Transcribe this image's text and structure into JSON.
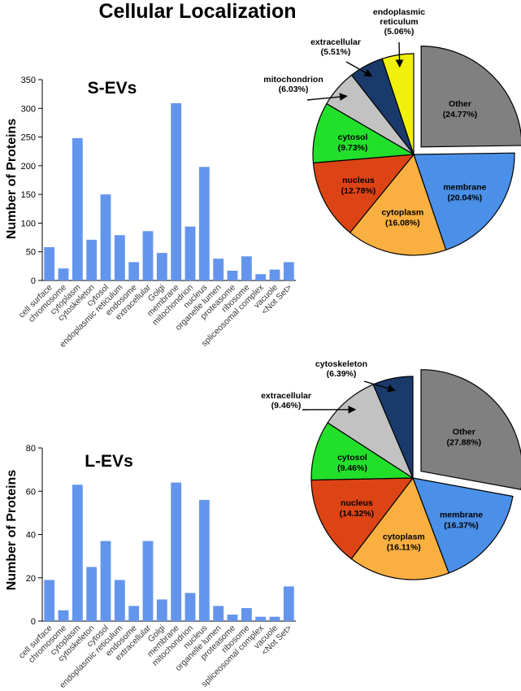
{
  "page_title": "Cellular  Localization",
  "colors": {
    "bar": "#6495ed",
    "axis": "#000000",
    "slice_stroke": "#000000",
    "other": "#808080",
    "membrane": "#4a90e8",
    "cytoplasm": "#f9b040",
    "nucleus": "#dd4415",
    "cytosol": "#22e02a",
    "mitochondrion": "#c2c2c2",
    "extracellular_s": "#1a3a6b",
    "endoplasmic_reticulum": "#f0f00a",
    "extracellular_l": "#c2c2c2",
    "cytoskeleton": "#1a3a6b"
  },
  "chart_data": [
    {
      "type": "bar",
      "title": "S-EVs",
      "xlabel": "",
      "ylabel": "Number of Proteins",
      "ylim": [
        0,
        350
      ],
      "yticks": [
        0,
        50,
        100,
        150,
        200,
        250,
        300,
        350
      ],
      "grid": false,
      "categories": [
        "cell surface",
        "chromosome",
        "cytoplasm",
        "cytoskeleton",
        "cytosol",
        "endoplasmic reticulum",
        "endosome",
        "extracellular",
        "Golgi",
        "membrane",
        "mitochondrion",
        "nucleus",
        "organelle lumen",
        "proteasome",
        "ribosome",
        "spliceosomal complex",
        "vacuole",
        "<Not Set>"
      ],
      "values": [
        58,
        21,
        248,
        71,
        150,
        79,
        32,
        86,
        48,
        309,
        94,
        198,
        38,
        17,
        42,
        11,
        19,
        32
      ]
    },
    {
      "type": "pie",
      "labels": [
        "Other",
        "membrane",
        "cytoplasm",
        "nucleus",
        "cytosol",
        "mitochondrion",
        "extracellular",
        "endoplasmic reticulum"
      ],
      "display_labels": [
        "Other",
        "membrane",
        "cytoplasm",
        "nucleus",
        "cytosol",
        "mitochondrion",
        "extracellular",
        "endoplasmic\nreticulum"
      ],
      "percent_labels": [
        "(24.77%)",
        "(20.04%)",
        "(16.08%)",
        "(12.78%)",
        "(9.73%)",
        "(6.03%)",
        "(5.51%)",
        "(5.06%)"
      ],
      "values": [
        24.77,
        20.04,
        16.08,
        12.78,
        9.73,
        6.03,
        5.51,
        5.06
      ],
      "color_keys": [
        "other",
        "membrane",
        "cytoplasm",
        "nucleus",
        "cytosol",
        "mitochondrion",
        "extracellular_s",
        "endoplasmic_reticulum"
      ],
      "exploded": [
        "Other"
      ],
      "outside_labels": [
        "mitochondrion",
        "extracellular",
        "endoplasmic reticulum"
      ]
    },
    {
      "type": "bar",
      "title": "L-EVs",
      "xlabel": "",
      "ylabel": "Number of Proteins",
      "ylim": [
        0,
        80
      ],
      "yticks": [
        0,
        20,
        40,
        60,
        80
      ],
      "grid": false,
      "categories": [
        "cell surface",
        "chromosome",
        "cytoplasm",
        "cytoskeleton",
        "cytosol",
        "endoplasmic reticulum",
        "endosome",
        "extracellular",
        "Golgi",
        "membrane",
        "mitochondrion",
        "nucleus",
        "organelle lumen",
        "proteasome",
        "ribosome",
        "spliceosomal complex",
        "vacuole",
        "<Not Set>"
      ],
      "values": [
        19,
        5,
        63,
        25,
        37,
        19,
        7,
        37,
        10,
        64,
        13,
        56,
        7,
        3,
        6,
        2,
        2,
        16
      ]
    },
    {
      "type": "pie",
      "labels": [
        "Other",
        "membrane",
        "cytoplasm",
        "nucleus",
        "cytosol",
        "extracellular",
        "cytoskeleton"
      ],
      "display_labels": [
        "Other",
        "membrane",
        "cytoplasm",
        "nucleus",
        "cytosol",
        "extracellular",
        "cytoskeleton"
      ],
      "percent_labels": [
        "(27.88%)",
        "(16.37%)",
        "(16.11%)",
        "(14.32%)",
        "(9.46%)",
        "(9.46%)",
        "(6.39%)"
      ],
      "values": [
        27.88,
        16.37,
        16.11,
        14.32,
        9.46,
        9.46,
        6.39
      ],
      "color_keys": [
        "other",
        "membrane",
        "cytoplasm",
        "nucleus",
        "cytosol",
        "extracellular_l",
        "cytoskeleton"
      ],
      "exploded": [
        "Other"
      ],
      "outside_labels": [
        "extracellular",
        "cytoskeleton"
      ]
    }
  ]
}
